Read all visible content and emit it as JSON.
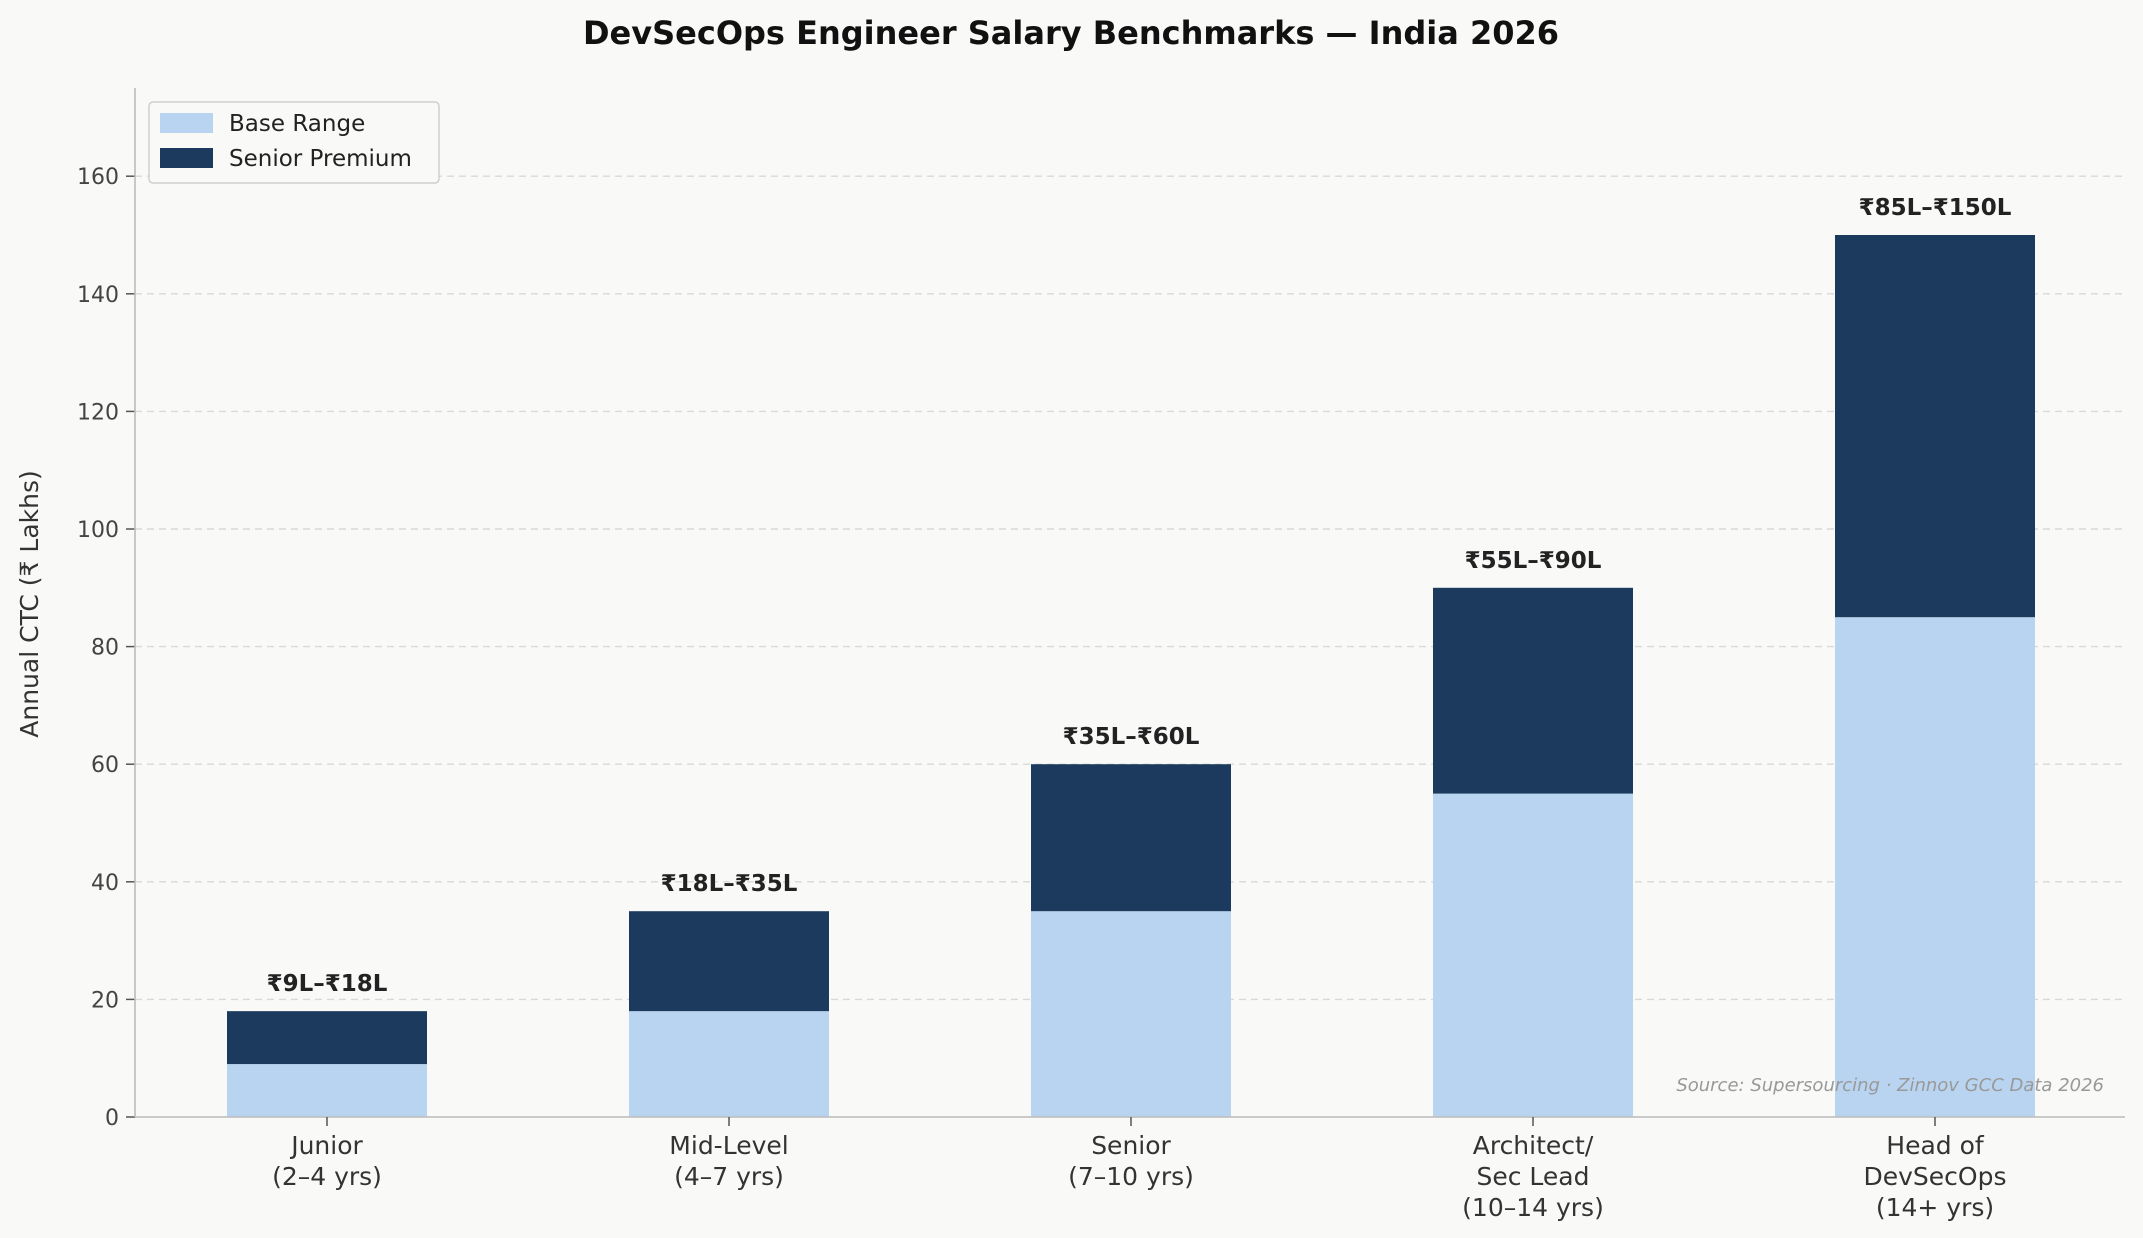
{
  "chart_data": {
    "type": "bar",
    "stacked": true,
    "title": "DevSecOps Engineer Salary Benchmarks — India 2026",
    "xlabel": "",
    "ylabel": "Annual CTC (₹ Lakhs)",
    "ylim": [
      0,
      175
    ],
    "yticks": [
      0,
      20,
      40,
      60,
      80,
      100,
      120,
      140,
      160
    ],
    "grid": "horizontal dashed",
    "legend_placement": "top-left",
    "categories": [
      [
        "Junior",
        "(2–4 yrs)"
      ],
      [
        "Mid-Level",
        "(4–7 yrs)"
      ],
      [
        "Senior",
        "(7–10 yrs)"
      ],
      [
        "Architect/",
        "Sec Lead",
        "(10–14 yrs)"
      ],
      [
        "Head of",
        "DevSecOps",
        "(14+ yrs)"
      ]
    ],
    "series": [
      {
        "name": "Base Range",
        "color": "#b9d4f1",
        "values": [
          9,
          18,
          35,
          55,
          85
        ]
      },
      {
        "name": "Senior Premium",
        "color": "#1b3a5e",
        "values": [
          9,
          17,
          25,
          35,
          65
        ]
      }
    ],
    "totals": [
      18,
      35,
      60,
      90,
      150
    ],
    "data_labels": [
      "₹9L–₹18L",
      "₹18L–₹35L",
      "₹35L–₹60L",
      "₹55L–₹90L",
      "₹85L–₹150L"
    ],
    "annotation": "Source: Supersourcing · Zinnov GCC Data 2026"
  }
}
